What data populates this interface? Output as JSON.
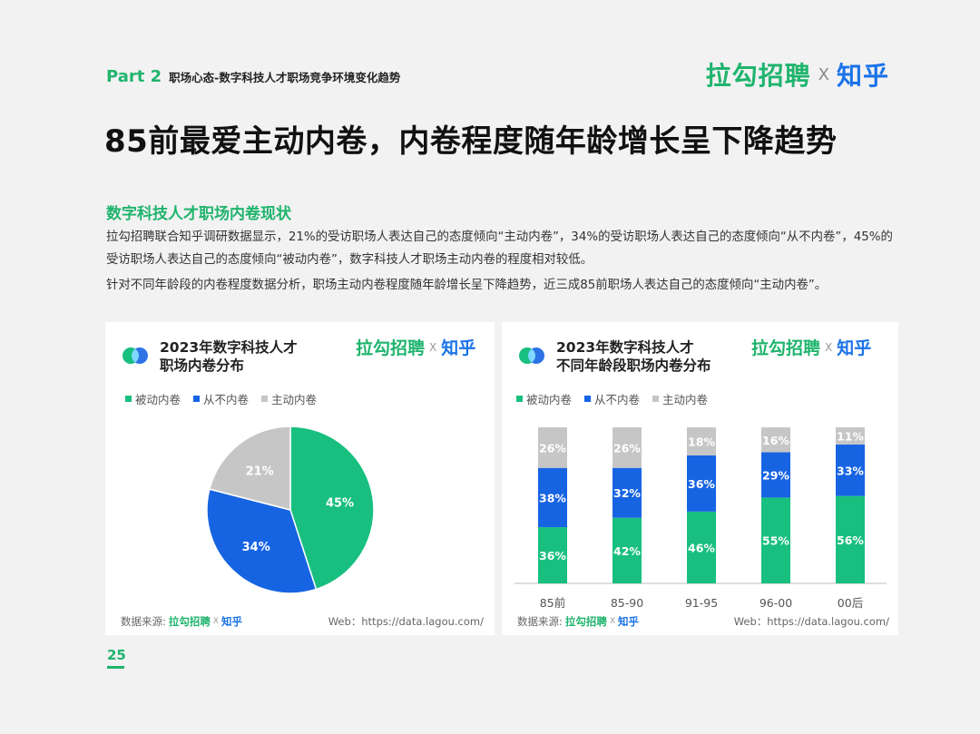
{
  "header": {
    "part": "Part 2",
    "part_subtitle": "职场心态-数字科技人才职场竞争环境变化趋势",
    "brand_lagou": "拉勾招聘",
    "brand_x": "X",
    "brand_zhihu": "知乎"
  },
  "title": "85前最爱主动内卷，内卷程度随年龄增长呈下降趋势",
  "section": {
    "title": "数字科技人才职场内卷现状",
    "para1": "拉勾招聘联合知乎调研数据显示，21%的受访职场人表达自己的态度倾向“主动内卷”，34%的受访职场人表达自己的态度倾向“从不内卷”，45%的受访职场人表达自己的态度倾向“被动内卷”，数字科技人才职场主动内卷的程度相对较低。",
    "para2": "针对不同年龄段的内卷程度数据分析，职场主动内卷程度随年龄增长呈下降趋势，近三成85前职场人表达自己的态度倾向“主动内卷”。"
  },
  "colors": {
    "green": "#18bf7e",
    "blue": "#1764e3",
    "gray": "#c6c6c6"
  },
  "chart_left": {
    "title_line1": "2023年数字科技人才",
    "title_line2": "职场内卷分布"
  },
  "chart_right": {
    "title_line1": "2023年数字科技人才",
    "title_line2": "不同年龄段职场内卷分布"
  },
  "card_brand": {
    "lagou": "拉勾招聘",
    "x": "X",
    "zhihu": "知乎"
  },
  "legend": [
    "被动内卷",
    "从不内卷",
    "主动内卷"
  ],
  "footer": {
    "source_label": "数据来源:",
    "source_lagou": "拉勾招聘",
    "source_x": "X",
    "source_zhihu": "知乎",
    "web": "Web：https://data.lagou.com/"
  },
  "page_number": "25",
  "chart_data": [
    {
      "type": "pie",
      "labels": [
        "被动内卷",
        "从不内卷",
        "主动内卷"
      ],
      "values": [
        45,
        34,
        21
      ],
      "value_labels": [
        "45%",
        "34%",
        "21%"
      ]
    },
    {
      "type": "bar",
      "stacked": true,
      "categories": [
        "85前",
        "85-90",
        "91-95",
        "96-00",
        "00后"
      ],
      "series": [
        {
          "name": "被动内卷",
          "values": [
            36,
            42,
            46,
            55,
            56
          ]
        },
        {
          "name": "从不内卷",
          "values": [
            38,
            32,
            36,
            29,
            33
          ]
        },
        {
          "name": "主动内卷",
          "values": [
            26,
            26,
            18,
            16,
            11
          ]
        }
      ],
      "ylim": [
        0,
        100
      ]
    }
  ]
}
